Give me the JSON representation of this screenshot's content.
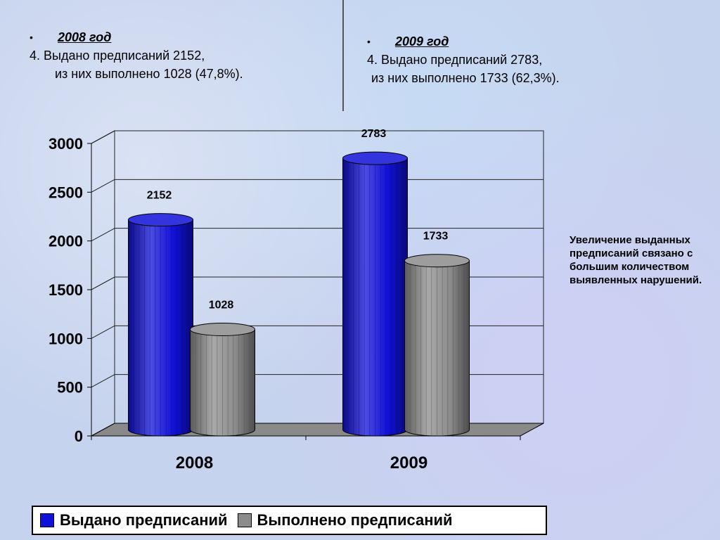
{
  "left_block": {
    "bullet": "•",
    "year": "2008 год",
    "line1": "4. Выдано предписаний 2152,",
    "line2": "из них выполнено 1028 (47,8%)."
  },
  "right_block": {
    "bullet": "•",
    "year": "2009 год",
    "line1": "4. Выдано предписаний 2783,",
    "line2": "из них выполнено 1733 (62,3%)."
  },
  "note": "Увеличение выданных предписаний связано с большим количеством выявленных нарушений.",
  "colors": {
    "issued": "#1010d8",
    "completed": "#8c8c8c"
  },
  "chart_data": {
    "type": "bar",
    "categories": [
      "2008",
      "2009"
    ],
    "series": [
      {
        "name": "Выдано предписаний",
        "values": [
          2152,
          2783
        ]
      },
      {
        "name": "Выполнено предписаний",
        "values": [
          1028,
          1733
        ]
      }
    ],
    "data_labels": [
      [
        "2152",
        "2783"
      ],
      [
        "1028",
        "1733"
      ]
    ],
    "y_ticks": [
      "0",
      "500",
      "1000",
      "1500",
      "2000",
      "2500",
      "3000"
    ],
    "ylim": [
      0,
      3000
    ],
    "grid": true,
    "legend": "bottom"
  }
}
